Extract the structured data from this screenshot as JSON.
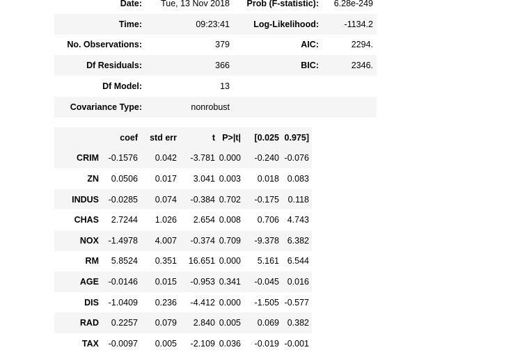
{
  "summary": {
    "rows": [
      {
        "label1": "Date:",
        "value1": "Tue, 13 Nov 2018",
        "label2": "Prob (F-statistic):",
        "value2": "6.28e-249"
      },
      {
        "label1": "Time:",
        "value1": "09:23:41",
        "label2": "Log-Likelihood:",
        "value2": "-1134.2"
      },
      {
        "label1": "No. Observations:",
        "value1": "379",
        "label2": "AIC:",
        "value2": "2294."
      },
      {
        "label1": "Df Residuals:",
        "value1": "366",
        "label2": "BIC:",
        "value2": "2346."
      },
      {
        "label1": "Df Model:",
        "value1": "13",
        "label2": "",
        "value2": ""
      },
      {
        "label1": "Covariance Type:",
        "value1": "nonrobust",
        "label2": "",
        "value2": ""
      }
    ]
  },
  "coefficients": {
    "headers": [
      "",
      "coef",
      "std err",
      "t",
      "P>|t|",
      "[0.025",
      "0.975]"
    ],
    "rows": [
      {
        "name": "CRIM",
        "coef": "-0.1576",
        "std_err": "0.042",
        "t": "-3.781",
        "p": "0.000",
        "lower": "-0.240",
        "upper": "-0.076"
      },
      {
        "name": "ZN",
        "coef": "0.0506",
        "std_err": "0.017",
        "t": "3.041",
        "p": "0.003",
        "lower": "0.018",
        "upper": "0.083"
      },
      {
        "name": "INDUS",
        "coef": "-0.0285",
        "std_err": "0.074",
        "t": "-0.384",
        "p": "0.702",
        "lower": "-0.175",
        "upper": "0.118"
      },
      {
        "name": "CHAS",
        "coef": "2.7244",
        "std_err": "1.026",
        "t": "2.654",
        "p": "0.008",
        "lower": "0.706",
        "upper": "4.743"
      },
      {
        "name": "NOX",
        "coef": "-1.4978",
        "std_err": "4.007",
        "t": "-0.374",
        "p": "0.709",
        "lower": "-9.378",
        "upper": "6.382"
      },
      {
        "name": "RM",
        "coef": "5.8524",
        "std_err": "0.351",
        "t": "16.651",
        "p": "0.000",
        "lower": "5.161",
        "upper": "6.544"
      },
      {
        "name": "AGE",
        "coef": "-0.0146",
        "std_err": "0.015",
        "t": "-0.953",
        "p": "0.341",
        "lower": "-0.045",
        "upper": "0.016"
      },
      {
        "name": "DIS",
        "coef": "-1.0409",
        "std_err": "0.236",
        "t": "-4.412",
        "p": "0.000",
        "lower": "-1.505",
        "upper": "-0.577"
      },
      {
        "name": "RAD",
        "coef": "0.2257",
        "std_err": "0.079",
        "t": "2.840",
        "p": "0.005",
        "lower": "0.069",
        "upper": "0.382"
      },
      {
        "name": "TAX",
        "coef": "-0.0097",
        "std_err": "0.005",
        "t": "-2.109",
        "p": "0.036",
        "lower": "-0.019",
        "upper": "-0.001"
      }
    ]
  },
  "colors": {
    "stripe": "#f5f5f5",
    "text": "#000000",
    "background": "#ffffff"
  }
}
